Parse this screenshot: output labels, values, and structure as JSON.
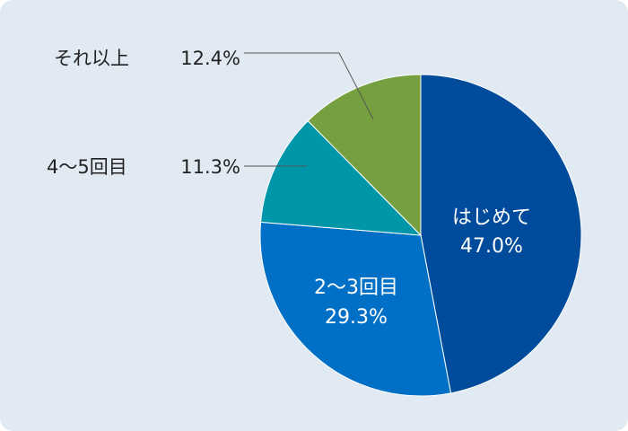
{
  "chart_data": {
    "type": "pie",
    "title": "",
    "start_angle_deg": 0,
    "direction": "clockwise",
    "slices": [
      {
        "label": "はじめて",
        "value": 47.0,
        "value_text": "47.0%",
        "color": "#004b9b",
        "label_placement": "inside"
      },
      {
        "label": "2〜3回目",
        "value": 29.3,
        "value_text": "29.3%",
        "color": "#0070c6",
        "label_placement": "inside"
      },
      {
        "label": "4〜5回目",
        "value": 11.3,
        "value_text": "11.3%",
        "color": "#0096aa",
        "label_placement": "outside-left"
      },
      {
        "label": "それ以上",
        "value": 12.4,
        "value_text": "12.4%",
        "color": "#76a040",
        "label_placement": "outside-left"
      }
    ]
  },
  "colors": {
    "panel_background": "#e1eaf2",
    "inside_label_text": "#ffffff",
    "outside_label_text": "#222222",
    "leader_line": "#555555"
  }
}
